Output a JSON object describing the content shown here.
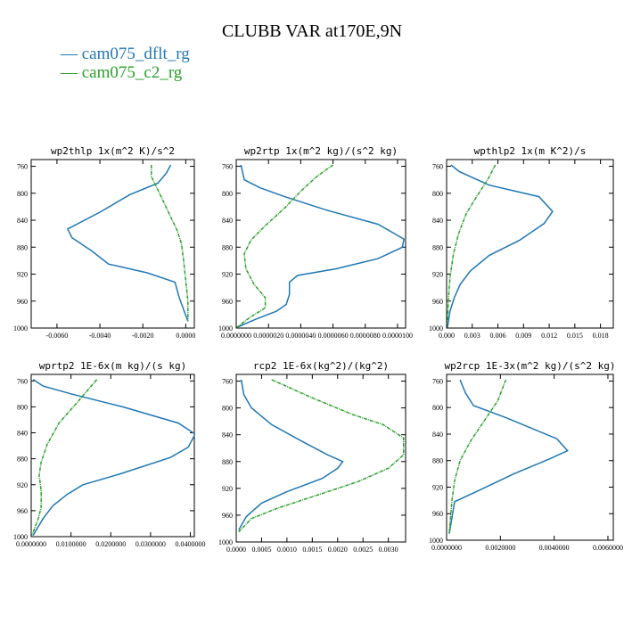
{
  "title": "CLUBB VAR at170E,9N",
  "legend": [
    {
      "label": "cam075_dflt_rg",
      "color": "#1f77b4"
    },
    {
      "label": "cam075_c2_rg",
      "color": "#2ca02c"
    }
  ],
  "chart_data": [
    {
      "type": "line",
      "title": "wp2thlp  1x(m^2 K)/s^2",
      "xlim": [
        -0.0072,
        0.0004
      ],
      "ylim": [
        1000,
        750
      ],
      "yticks": [
        760,
        800,
        840,
        880,
        920,
        960,
        1000
      ],
      "xticks": [
        -0.006,
        -0.004,
        -0.002,
        0.0
      ],
      "xtick_labels": [
        "-0.0060",
        "-0.0040",
        "-0.0020",
        "0.0000"
      ],
      "series": [
        {
          "name": "cam075_dflt_rg",
          "color": "#1f77b4",
          "x": [
            -0.0007,
            -0.0009,
            -0.0013,
            -0.0026,
            -0.004,
            -0.0055,
            -0.0053,
            -0.0044,
            -0.0036,
            -0.0018,
            -0.0005,
            -0.0003,
            0.0001
          ],
          "y": [
            758,
            770,
            785,
            802,
            828,
            853,
            866,
            885,
            905,
            918,
            932,
            955,
            990
          ]
        },
        {
          "name": "cam075_c2_rg",
          "color": "#2ca02c",
          "x": [
            -0.0016,
            -0.0016,
            -0.0013,
            -0.001,
            -0.0007,
            -0.0004,
            -0.0002,
            -0.0001,
            0.0,
            0.0001,
            0.0001
          ],
          "y": [
            758,
            775,
            795,
            815,
            835,
            855,
            875,
            900,
            930,
            960,
            990
          ]
        }
      ]
    },
    {
      "type": "line",
      "title": "wp2rtp  1x(m^2 kg)/(s^2 kg)",
      "xlim": [
        0.0,
        1.05e-05
      ],
      "ylim": [
        1000,
        750
      ],
      "yticks": [
        760,
        800,
        840,
        880,
        920,
        960,
        1000
      ],
      "xticks": [
        0.0,
        2e-06,
        4e-06,
        6e-06,
        8e-06,
        1e-05
      ],
      "xtick_labels": [
        "0.0000000",
        "0.0000020",
        "0.0000040",
        "0.0000060",
        "0.0000080",
        "0.0000100"
      ],
      "series": [
        {
          "name": "cam075_dflt_rg",
          "color": "#1f77b4",
          "x": [
            3e-07,
            5e-07,
            1.5e-06,
            3e-06,
            5.6e-06,
            8.8e-06,
            1.04e-05,
            1.03e-05,
            8.8e-06,
            6.2e-06,
            3.8e-06,
            3.3e-06,
            3.3e-06,
            3.1e-06,
            2.5e-06,
            1.2e-06,
            5e-08
          ],
          "y": [
            758,
            780,
            792,
            805,
            825,
            846,
            868,
            880,
            897,
            912,
            922,
            932,
            950,
            965,
            975,
            987,
            999
          ]
        },
        {
          "name": "cam075_c2_rg",
          "color": "#2ca02c",
          "x": [
            6e-06,
            5e-06,
            4e-06,
            3e-06,
            1.8e-06,
            9e-07,
            5e-07,
            6e-07,
            1.1e-06,
            1.8e-06,
            1.8e-06,
            8e-07,
            5e-08
          ],
          "y": [
            758,
            775,
            797,
            822,
            848,
            870,
            890,
            912,
            935,
            955,
            970,
            985,
            999
          ]
        }
      ]
    },
    {
      "type": "line",
      "title": "wpthlp2  1x(m K^2)/s",
      "xlim": [
        0.0,
        0.0195
      ],
      "ylim": [
        1000,
        750
      ],
      "yticks": [
        760,
        800,
        840,
        880,
        920,
        960,
        1000
      ],
      "xticks": [
        0.0,
        0.003,
        0.006,
        0.009,
        0.012,
        0.015,
        0.018
      ],
      "xtick_labels": [
        "0.000",
        "0.003",
        "0.006",
        "0.009",
        "0.012",
        "0.015",
        "0.018"
      ],
      "series": [
        {
          "name": "cam075_dflt_rg",
          "color": "#1f77b4",
          "x": [
            0.0005,
            0.0015,
            0.005,
            0.0108,
            0.0124,
            0.0114,
            0.0085,
            0.005,
            0.0028,
            0.0016,
            0.0009,
            0.0004,
            0.0001
          ],
          "y": [
            758,
            768,
            788,
            805,
            827,
            845,
            870,
            892,
            915,
            935,
            955,
            975,
            999
          ]
        },
        {
          "name": "cam075_c2_rg",
          "color": "#2ca02c",
          "x": [
            0.0057,
            0.0048,
            0.0035,
            0.0023,
            0.0014,
            0.0008,
            0.0004,
            0.0002,
            0.0001
          ],
          "y": [
            758,
            780,
            805,
            830,
            860,
            890,
            925,
            960,
            995
          ]
        }
      ]
    },
    {
      "type": "line",
      "title": "wprtp2  1E-6x(m kg)/(s kg)",
      "xlim": [
        0.0,
        0.041
      ],
      "ylim": [
        1000,
        750
      ],
      "yticks": [
        760,
        800,
        840,
        880,
        920,
        960,
        1000
      ],
      "xticks": [
        0.0,
        0.01,
        0.02,
        0.03,
        0.04
      ],
      "xtick_labels": [
        "0.0000000",
        "0.0100000",
        "0.0200000",
        "0.0300000",
        "0.0400000"
      ],
      "series": [
        {
          "name": "cam075_dflt_rg",
          "color": "#1f77b4",
          "x": [
            0.0005,
            0.003,
            0.01,
            0.023,
            0.037,
            0.0412,
            0.0395,
            0.035,
            0.022,
            0.013,
            0.009,
            0.0055,
            0.003,
            0.0005
          ],
          "y": [
            758,
            768,
            780,
            800,
            825,
            842,
            862,
            878,
            904,
            920,
            935,
            952,
            972,
            998
          ]
        },
        {
          "name": "cam075_c2_rg",
          "color": "#2ca02c",
          "x": [
            0.0165,
            0.012,
            0.007,
            0.004,
            0.0025,
            0.002,
            0.0025,
            0.0025,
            0.0018,
            0.0008,
            0.0002
          ],
          "y": [
            758,
            790,
            825,
            858,
            885,
            905,
            930,
            955,
            972,
            988,
            998
          ]
        }
      ]
    },
    {
      "type": "line",
      "title": "rcp2  1E-6x(kg^2)/(kg^2)",
      "xlim": [
        0.0,
        0.00334
      ],
      "ylim": [
        1000,
        750
      ],
      "yticks": [
        760,
        800,
        840,
        880,
        920,
        960,
        1000
      ],
      "xticks": [
        0.0,
        0.0005,
        0.001,
        0.0015,
        0.002,
        0.0025,
        0.003
      ],
      "xtick_labels": [
        "0.0000",
        "0.0005",
        "0.0010",
        "0.0015",
        "0.0020",
        "0.0025",
        "0.0030"
      ],
      "series": [
        {
          "name": "cam075_dflt_rg",
          "color": "#1f77b4",
          "x": [
            0.0001,
            0.00015,
            0.0003,
            0.0007,
            0.0013,
            0.0018,
            0.0021,
            0.002,
            0.0017,
            0.001,
            0.0005,
            0.0002,
            5e-05
          ],
          "y": [
            758,
            780,
            800,
            825,
            850,
            870,
            880,
            890,
            905,
            925,
            942,
            962,
            982
          ]
        },
        {
          "name": "cam075_c2_rg",
          "color": "#2ca02c",
          "x": [
            0.0007,
            0.0015,
            0.0023,
            0.0029,
            0.0033,
            0.0033,
            0.003,
            0.0024,
            0.0016,
            0.0008,
            0.0003,
            5e-05
          ],
          "y": [
            758,
            785,
            810,
            825,
            845,
            870,
            890,
            910,
            930,
            950,
            965,
            985
          ]
        }
      ]
    },
    {
      "type": "line",
      "title": "wp2rcp  1E-3x(m^2 kg)/(s^2 kg)",
      "xlim": [
        0.0,
        0.0062
      ],
      "ylim": [
        1000,
        750
      ],
      "yticks": [
        760,
        800,
        840,
        880,
        920,
        960,
        1000
      ],
      "xticks": [
        0.0,
        0.002,
        0.004,
        0.006
      ],
      "xtick_labels": [
        "0.0000000",
        "0.0020000",
        "0.0040000",
        "0.0060000"
      ],
      "series": [
        {
          "name": "cam075_dflt_rg",
          "color": "#1f77b4",
          "x": [
            0.0005,
            0.0007,
            0.001,
            0.0022,
            0.0041,
            0.0045,
            0.0038,
            0.0025,
            0.0012,
            0.0003,
            0.0001
          ],
          "y": [
            758,
            778,
            797,
            815,
            847,
            865,
            878,
            900,
            925,
            942,
            990
          ]
        },
        {
          "name": "cam075_c2_rg",
          "color": "#2ca02c",
          "x": [
            0.0022,
            0.0019,
            0.0014,
            0.0009,
            0.0005,
            0.0003,
            0.0002,
            0.0001
          ],
          "y": [
            758,
            790,
            820,
            850,
            880,
            910,
            940,
            990
          ]
        }
      ]
    }
  ]
}
